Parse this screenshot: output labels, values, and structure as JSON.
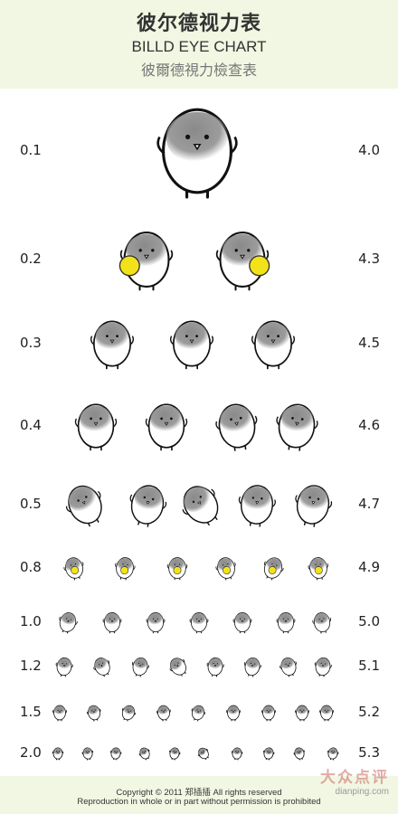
{
  "header": {
    "title_cn": "彼尔德视力表",
    "title_en": "BILLD EYE CHART",
    "title_tw": "彼爾德視力檢查表"
  },
  "rows": [
    {
      "left": "0.1",
      "right": "4.0",
      "count": 1
    },
    {
      "left": "0.2",
      "right": "4.3",
      "count": 2
    },
    {
      "left": "0.3",
      "right": "4.5",
      "count": 3
    },
    {
      "left": "0.4",
      "right": "4.6",
      "count": 4
    },
    {
      "left": "0.5",
      "right": "4.7",
      "count": 5
    },
    {
      "left": "0.8",
      "right": "4.9",
      "count": 6
    },
    {
      "left": "1.0",
      "right": "5.0",
      "count": 7
    },
    {
      "left": "1.2",
      "right": "5.1",
      "count": 8
    },
    {
      "left": "1.5",
      "right": "5.2",
      "count": 9
    },
    {
      "left": "2.0",
      "right": "5.3",
      "count": 10
    }
  ],
  "footer": {
    "copyright": "Copyright © 2011 郑插插 All rights reserved",
    "notice": "Reproduction in whole or in part without permission is prohibited"
  },
  "watermark": {
    "text_cn": "大众点评",
    "text_en": "dianping.com"
  },
  "colors": {
    "header_bg": "#f1f7e2",
    "accent_yellow": "#f3e21a",
    "body_gray": "#8a8a8a"
  },
  "icons": {
    "figure": "round-chick-icon",
    "held_object": "yellow-ball-icon"
  }
}
